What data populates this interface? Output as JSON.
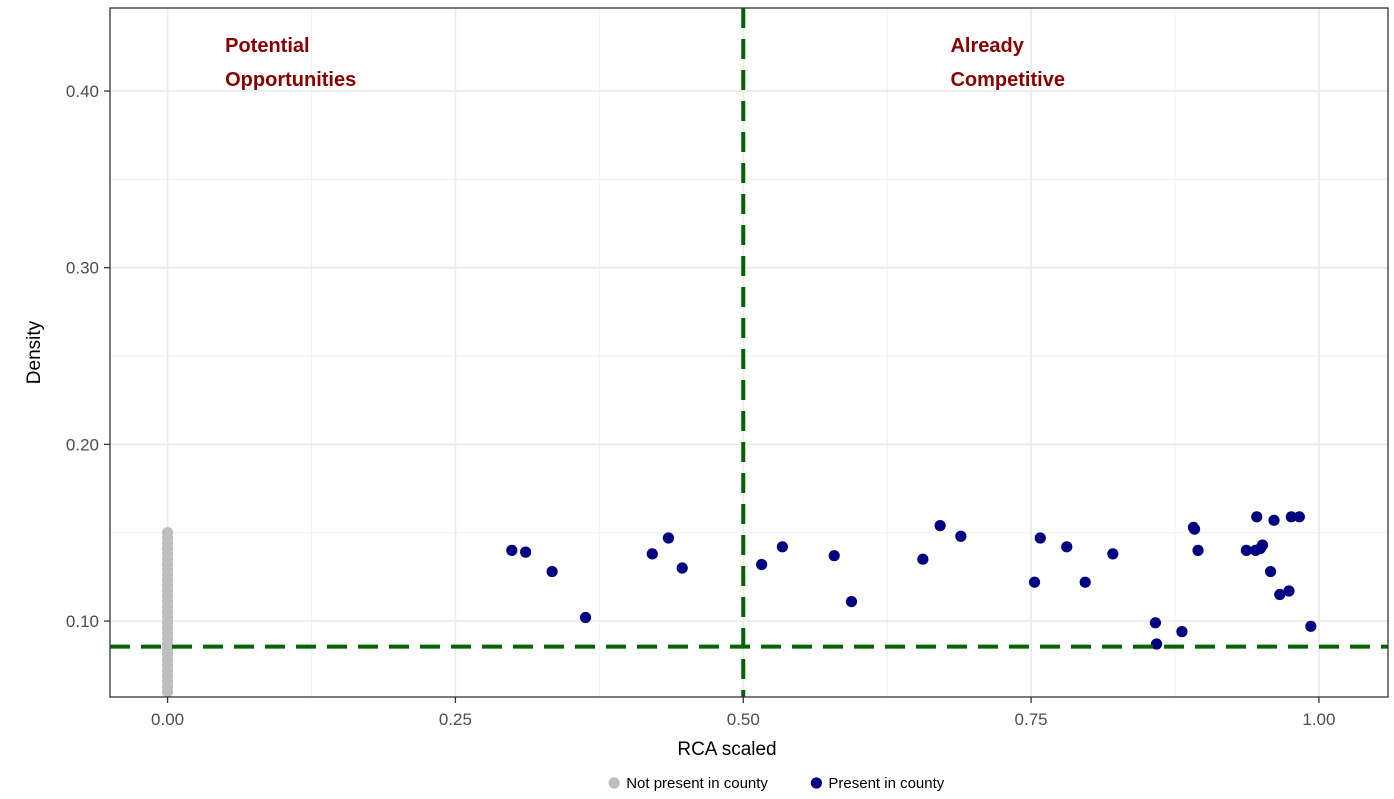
{
  "chart_data": {
    "type": "scatter",
    "xlabel": "RCA scaled",
    "ylabel": "Density",
    "xlim": [
      -0.05,
      1.06
    ],
    "ylim": [
      0.057,
      0.447
    ],
    "x_ticks": [
      0.0,
      0.25,
      0.5,
      0.75,
      1.0
    ],
    "x_tick_labels": [
      "0.00",
      "0.25",
      "0.50",
      "0.75",
      "1.00"
    ],
    "y_ticks": [
      0.1,
      0.2,
      0.3,
      0.4
    ],
    "y_tick_labels": [
      "0.10",
      "0.20",
      "0.30",
      "0.40"
    ],
    "grid": true,
    "legend_position": "bottom",
    "reference_lines": {
      "vertical_x": 0.5,
      "horizontal_y": 0.0855,
      "color": "#006400",
      "style": "dashed"
    },
    "annotations": [
      {
        "lines": [
          "Potential",
          "Opportunities"
        ],
        "x": 0.05,
        "y": 0.422
      },
      {
        "lines": [
          "Already",
          "Competitive"
        ],
        "x": 0.68,
        "y": 0.422
      }
    ],
    "series": [
      {
        "name": "Not present in county",
        "color": "#bebebe",
        "points": [
          [
            0,
            0.15
          ],
          [
            0,
            0.147
          ],
          [
            0,
            0.144
          ],
          [
            0,
            0.141
          ],
          [
            0,
            0.138
          ],
          [
            0,
            0.135
          ],
          [
            0,
            0.132
          ],
          [
            0,
            0.129
          ],
          [
            0,
            0.126
          ],
          [
            0,
            0.123
          ],
          [
            0,
            0.12
          ],
          [
            0,
            0.117
          ],
          [
            0,
            0.114
          ],
          [
            0,
            0.111
          ],
          [
            0,
            0.108
          ],
          [
            0,
            0.105
          ],
          [
            0,
            0.102
          ],
          [
            0,
            0.099
          ],
          [
            0,
            0.096
          ],
          [
            0,
            0.093
          ],
          [
            0,
            0.09
          ],
          [
            0,
            0.087
          ],
          [
            0,
            0.084
          ],
          [
            0,
            0.081
          ],
          [
            0,
            0.078
          ],
          [
            0,
            0.075
          ],
          [
            0,
            0.072
          ],
          [
            0,
            0.069
          ],
          [
            0,
            0.066
          ],
          [
            0,
            0.063
          ],
          [
            0,
            0.06
          ]
        ]
      },
      {
        "name": "Present in county",
        "color": "#000080",
        "points": [
          [
            0.299,
            0.14
          ],
          [
            0.311,
            0.139
          ],
          [
            0.334,
            0.128
          ],
          [
            0.363,
            0.102
          ],
          [
            0.421,
            0.138
          ],
          [
            0.435,
            0.147
          ],
          [
            0.447,
            0.13
          ],
          [
            0.516,
            0.132
          ],
          [
            0.534,
            0.142
          ],
          [
            0.579,
            0.137
          ],
          [
            0.594,
            0.111
          ],
          [
            0.656,
            0.135
          ],
          [
            0.671,
            0.154
          ],
          [
            0.689,
            0.148
          ],
          [
            0.753,
            0.122
          ],
          [
            0.758,
            0.147
          ],
          [
            0.781,
            0.142
          ],
          [
            0.797,
            0.122
          ],
          [
            0.821,
            0.138
          ],
          [
            0.858,
            0.099
          ],
          [
            0.859,
            0.087
          ],
          [
            0.881,
            0.094
          ],
          [
            0.891,
            0.153
          ],
          [
            0.892,
            0.152
          ],
          [
            0.895,
            0.14
          ],
          [
            0.937,
            0.14
          ],
          [
            0.945,
            0.14
          ],
          [
            0.946,
            0.159
          ],
          [
            0.949,
            0.141
          ],
          [
            0.951,
            0.143
          ],
          [
            0.958,
            0.128
          ],
          [
            0.961,
            0.157
          ],
          [
            0.966,
            0.115
          ],
          [
            0.974,
            0.117
          ],
          [
            0.976,
            0.159
          ],
          [
            0.983,
            0.159
          ],
          [
            0.993,
            0.097
          ]
        ]
      }
    ]
  }
}
